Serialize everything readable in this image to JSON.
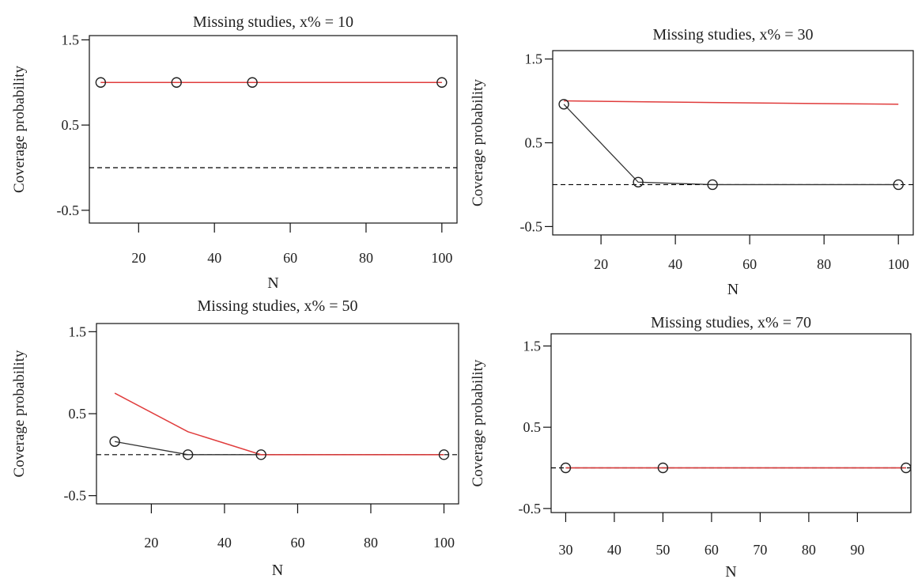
{
  "figure": {
    "panels": [
      {
        "title": "Missing studies, x% = 10",
        "xlabel": "N",
        "ylabel": "Coverage probability",
        "xticks": [
          20,
          40,
          60,
          80,
          100
        ],
        "yticks": [
          1.5,
          0.5,
          -0.5
        ],
        "ytick_labels": [
          "1.5",
          "0.5",
          "-0.5"
        ]
      },
      {
        "title": "Missing studies, x% = 30",
        "xlabel": "N",
        "ylabel": "Coverage probability",
        "xticks": [
          20,
          40,
          60,
          80,
          100
        ],
        "yticks": [
          1.5,
          0.5,
          -0.5
        ],
        "ytick_labels": [
          "1.5",
          "0.5",
          "-0.5"
        ]
      },
      {
        "title": "Missing studies, x% = 50",
        "xlabel": "N",
        "ylabel": "Coverage probability",
        "xticks": [
          20,
          40,
          60,
          80,
          100
        ],
        "yticks": [
          1.5,
          0.5,
          -0.5
        ],
        "ytick_labels": [
          "1.5",
          "0.5",
          "-0.5"
        ]
      },
      {
        "title": "Missing studies, x% = 70",
        "xlabel": "N",
        "ylabel": "Coverage probability",
        "xticks": [
          30,
          40,
          50,
          60,
          70,
          80,
          90
        ],
        "yticks": [
          1.5,
          0.5,
          -0.5
        ],
        "ytick_labels": [
          "1.5",
          "0.5",
          "-0.5"
        ]
      }
    ]
  },
  "colors": {
    "series_black": "#333333",
    "series_red": "#e03c3c",
    "reference_line": "#000000"
  },
  "chart_data": [
    {
      "type": "line",
      "title": "Missing studies, x% = 10",
      "xlabel": "N",
      "ylabel": "Coverage probability",
      "xlim": [
        7,
        104
      ],
      "ylim": [
        -0.65,
        1.55
      ],
      "x": [
        10,
        30,
        50,
        100
      ],
      "series": [
        {
          "color": "#333333",
          "marker": "open-circle",
          "values": [
            1.0,
            1.0,
            1.0,
            1.0
          ]
        },
        {
          "color": "#e03c3c",
          "marker": "none",
          "values": [
            1.0,
            1.0,
            1.0,
            1.0
          ]
        }
      ],
      "reference_line": {
        "y": 0.0,
        "style": "dashed"
      },
      "grid": false
    },
    {
      "type": "line",
      "title": "Missing studies, x% = 30",
      "xlabel": "N",
      "ylabel": "Coverage probability",
      "xlim": [
        7,
        104
      ],
      "ylim": [
        -0.6,
        1.6
      ],
      "x": [
        10,
        30,
        50,
        100
      ],
      "series": [
        {
          "color": "#333333",
          "marker": "open-circle",
          "values": [
            0.96,
            0.03,
            0.0,
            0.0
          ]
        },
        {
          "color": "#e03c3c",
          "marker": "none",
          "values": [
            1.0,
            0.99,
            0.98,
            0.96
          ]
        }
      ],
      "reference_line": {
        "y": 0.0,
        "style": "dashed"
      },
      "grid": false
    },
    {
      "type": "line",
      "title": "Missing studies, x% = 50",
      "xlabel": "N",
      "ylabel": "Coverage probability",
      "xlim": [
        5,
        104
      ],
      "ylim": [
        -0.6,
        1.6
      ],
      "x": [
        10,
        30,
        50,
        100
      ],
      "series": [
        {
          "color": "#333333",
          "marker": "open-circle",
          "values": [
            0.16,
            0.0,
            0.0,
            0.0
          ]
        },
        {
          "color": "#e03c3c",
          "marker": "none",
          "values": [
            0.75,
            0.28,
            0.0,
            0.0
          ]
        }
      ],
      "reference_line": {
        "y": 0.0,
        "style": "dashed"
      },
      "grid": false
    },
    {
      "type": "line",
      "title": "Missing studies, x% = 70",
      "xlabel": "N",
      "ylabel": "Coverage probability",
      "xlim": [
        27,
        101
      ],
      "ylim": [
        -0.55,
        1.65
      ],
      "x": [
        30,
        50,
        100
      ],
      "series": [
        {
          "color": "#333333",
          "marker": "open-circle",
          "values": [
            0.0,
            0.0,
            0.0
          ]
        },
        {
          "color": "#e03c3c",
          "marker": "none",
          "values": [
            0.0,
            0.0,
            0.0
          ]
        }
      ],
      "reference_line": {
        "y": 0.0,
        "style": "dashed"
      },
      "grid": false
    }
  ]
}
